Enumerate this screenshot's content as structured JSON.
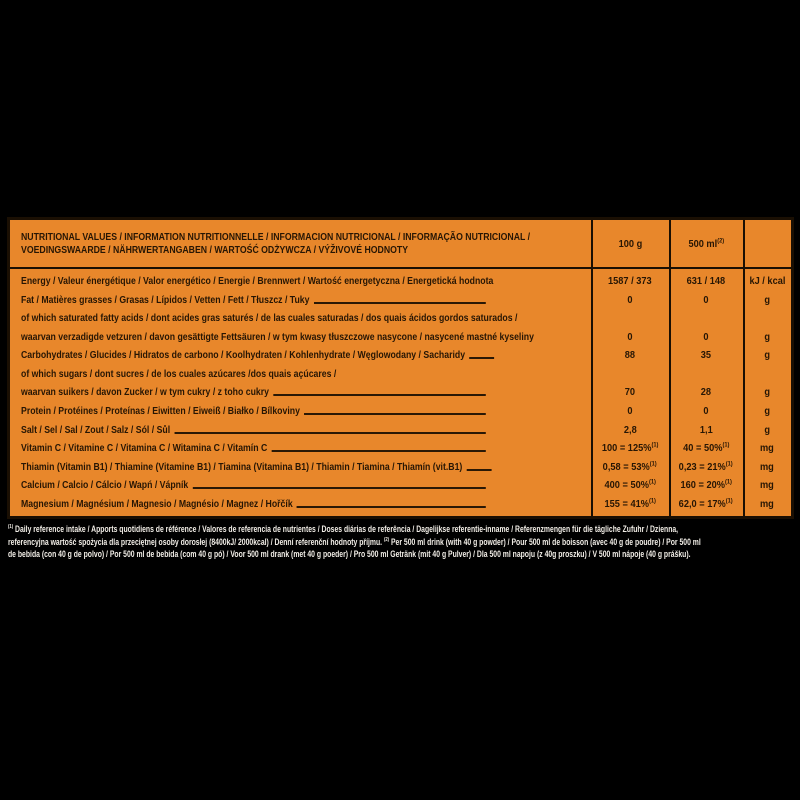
{
  "colors": {
    "background": "#000000",
    "label_orange": "#E8872B",
    "ink_dark": "#271604",
    "border_dark": "#1A0F03",
    "footnote_white": "#F2EEE7"
  },
  "label": {
    "header": {
      "title_line1": "NUTRITIONAL VALUES / INFORMATION NUTRITIONNELLE / INFORMACION NUTRICIONAL / INFORMAÇÃO NUTRICIONAL /",
      "title_line2": "VOEDINGSWAARDE / NÄHRWERTANGABEN / WARTOŚĆ ODŻYWCZA / VÝŽIVOVÉ HODNOTY",
      "col_100g": "100 g",
      "col_500ml": "500 ml",
      "col_500ml_sup": "(2)"
    },
    "rows": [
      {
        "label": "Energy / Valeur énergétique / Valor energético / Energie / Brennwert / Wartość energetyczna / Energetická hodnota",
        "v100": "1587 / 373",
        "v500": "631 / 148",
        "unit": "kJ / kcal"
      },
      {
        "label": "Fat / Matières grasses / Grasas / Lípidos / Vetten / Fett / Tłuszcz / Tuky",
        "v100": "0",
        "v500": "0",
        "unit": "g"
      },
      {
        "label": "of which saturated fatty acids / dont acides gras saturés / de las cuales saturadas / dos quais ácidos gordos saturados /"
      },
      {
        "label": "waarvan verzadigde vetzuren / davon gesättigte Fettsäuren / w tym kwasy tłuszczowe nasycone / nasycené mastné kyseliny",
        "v100": "0",
        "v500": "0",
        "unit": "g"
      },
      {
        "label": "Carbohydrates / Glucides / Hidratos de carbono / Koolhydraten / Kohlenhydrate / Węglowodany / Sacharidy",
        "v100": "88",
        "v500": "35",
        "unit": "g"
      },
      {
        "label": "of which sugars / dont sucres / de los cuales azúcares /dos quais açúcares /"
      },
      {
        "label": "waarvan suikers / davon Zucker / w tym cukry / z toho cukry",
        "v100": "70",
        "v500": "28",
        "unit": "g"
      },
      {
        "label": "Protein / Protéines / Proteínas / Eiwitten / Eiweiß / Białko / Bílkoviny",
        "v100": "0",
        "v500": "0",
        "unit": "g"
      },
      {
        "label": "Salt / Sel / Sal / Zout / Salz / Sól / Sůl",
        "v100": "2,8",
        "v500": "1,1",
        "unit": "g"
      },
      {
        "label": "Vitamin C / Vitamine C / Vitamina C / Witamina C / Vitamín C",
        "v100": "100 = 125%",
        "v100_sup": "(1)",
        "v500": "40 = 50%",
        "v500_sup": "(1)",
        "unit": "mg"
      },
      {
        "label": "Thiamin (Vitamin B1) / Thiamine (Vitamine B1) / Tiamina (Vitamina B1) / Thiamin / Tiamina / Thiamín (vit.B1)",
        "v100": "0,58 = 53%",
        "v100_sup": "(1)",
        "v500": "0,23 = 21%",
        "v500_sup": "(1)",
        "unit": "mg"
      },
      {
        "label": "Calcium / Calcio / Cálcio / Wapń / Vápník",
        "v100": "400 = 50%",
        "v100_sup": "(1)",
        "v500": "160 = 20%",
        "v500_sup": "(1)",
        "unit": "mg"
      },
      {
        "label": "Magnesium / Magnésium / Magnesio / Magnésio / Magnez / Hořčík",
        "v100": "155 = 41%",
        "v100_sup": "(1)",
        "v500": "62,0 = 17%",
        "v500_sup": "(1)",
        "unit": "mg"
      }
    ],
    "footnote": {
      "sup1": "(1)",
      "line1": " Daily reference intake / Apports quotidiens de référence / Valores de referencia de nutrientes / Doses diárias de referência / Dagelijkse referentie-inname / Referenzmengen für die tägliche Zufuhr / Dzienna,",
      "line2a": "referencyjna wartość spożycia dla przeciętnej osoby dorosłej (8400kJ/ 2000kcal) / Denní referenční hodnoty příjmu. ",
      "sup2": "(2)",
      "line2b": " Per 500 ml drink (with 40 g powder) / Pour 500 ml de boisson (avec 40 g de poudre) / Por 500 ml",
      "line3": "de bebida (con 40 g de polvo) / Por 500 ml de bebida (com 40 g pó) / Voor 500 ml drank (met 40 g poeder) / Pro 500 ml Getränk (mit 40 g Pulver) / Dla 500 ml napoju (z 40g proszku) / V 500 ml nápoje (40 g prášku)."
    }
  }
}
